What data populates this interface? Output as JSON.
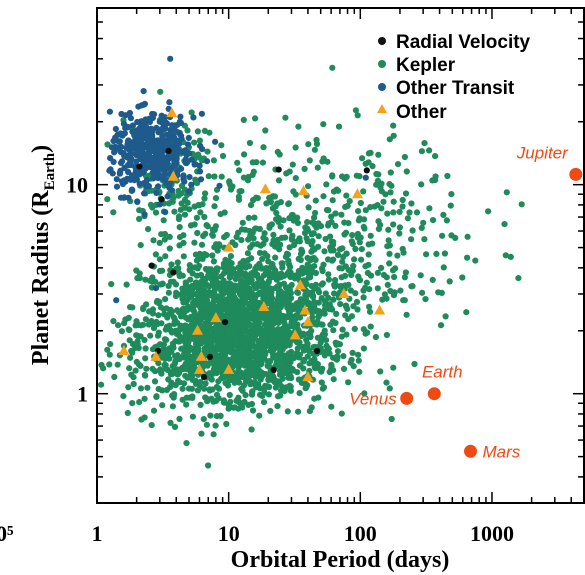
{
  "chart_data": {
    "type": "scatter",
    "xlabel": "Orbital Period (days)",
    "ylabel": "Planet Radius (R",
    "ylabel_sub": "Earth",
    "ylabel_close": ")",
    "x_scale": "log",
    "y_scale": "log",
    "xlim": [
      1,
      5000
    ],
    "ylim": [
      0.3,
      70
    ],
    "x_ticks": [
      {
        "value": 1,
        "label": "1"
      },
      {
        "value": 10,
        "label": "10"
      },
      {
        "value": 100,
        "label": "100"
      },
      {
        "value": 1000,
        "label": "1000"
      }
    ],
    "y_ticks": [
      {
        "value": 1,
        "label": "1"
      },
      {
        "value": 10,
        "label": "10"
      }
    ],
    "edge_label": "0⁵",
    "legend_position": "top-right",
    "colors": {
      "radial_velocity": "#111111",
      "kepler": "#1f8a5c",
      "other_transit": "#1e5a8c",
      "other": "#f5a21a",
      "solar_system": "#f04a14"
    },
    "series": [
      {
        "name": "Radial Velocity",
        "marker": "circle",
        "points": [
          [
            3.5,
            14.5
          ],
          [
            2.1,
            12.2
          ],
          [
            3.1,
            8.5
          ],
          [
            2.6,
            4.1
          ],
          [
            24,
            11.8
          ],
          [
            112,
            11.7
          ],
          [
            2.9,
            1.6
          ],
          [
            7.2,
            1.5
          ],
          [
            9.4,
            2.2
          ],
          [
            22,
            1.3
          ],
          [
            47,
            1.6
          ],
          [
            6.5,
            1.2
          ],
          [
            3.8,
            3.8
          ]
        ]
      },
      {
        "name": "Kepler",
        "marker": "circle",
        "distribution": "clustered"
      },
      {
        "name": "Other Transit",
        "marker": "circle",
        "distribution": "clustered"
      },
      {
        "name": "Other",
        "marker": "triangle",
        "points": [
          [
            3.7,
            22
          ],
          [
            3.8,
            10.9
          ],
          [
            10,
            5
          ],
          [
            19,
            9.5
          ],
          [
            37,
            9.3
          ],
          [
            95,
            9.0
          ],
          [
            8,
            2.3
          ],
          [
            5.8,
            2.0
          ],
          [
            18.5,
            2.6
          ],
          [
            35,
            3.3
          ],
          [
            38,
            2.5
          ],
          [
            32,
            1.9
          ],
          [
            40,
            2.2
          ],
          [
            75,
            3.0
          ],
          [
            140,
            2.5
          ],
          [
            2.8,
            1.5
          ],
          [
            1.6,
            1.6
          ],
          [
            6,
            1.3
          ],
          [
            10,
            1.3
          ],
          [
            40,
            1.2
          ],
          [
            6.2,
            1.5
          ]
        ]
      }
    ],
    "solar_system": [
      {
        "name": "Jupiter",
        "x": 4333,
        "y": 11.2,
        "label_anchor": "end",
        "label_dx": -8,
        "label_dy": -16
      },
      {
        "name": "Earth",
        "x": 365,
        "y": 1.0,
        "label_anchor": "middle",
        "label_dx": 8,
        "label_dy": -16
      },
      {
        "name": "Venus",
        "x": 225,
        "y": 0.95,
        "label_anchor": "end",
        "label_dx": -10,
        "label_dy": 6
      },
      {
        "name": "Mars",
        "x": 687,
        "y": 0.53,
        "label_anchor": "start",
        "label_dx": 12,
        "label_dy": 6
      }
    ]
  }
}
